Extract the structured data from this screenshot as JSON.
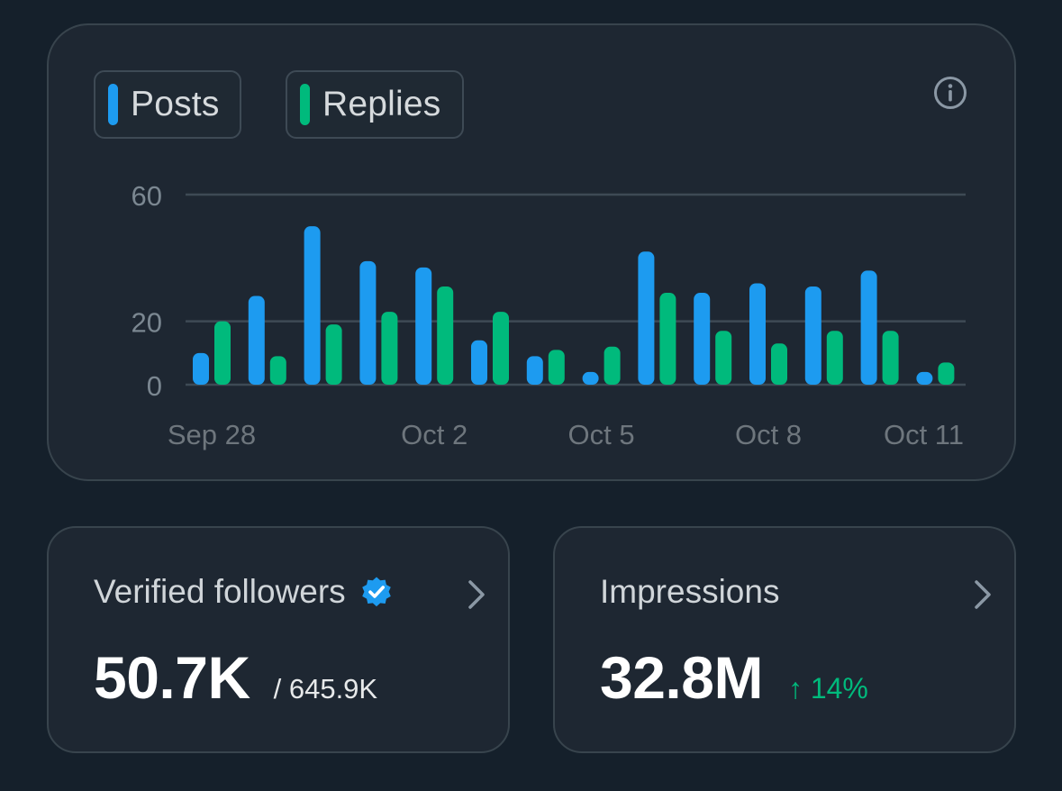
{
  "legend": {
    "posts_label": "Posts",
    "replies_label": "Replies"
  },
  "icons": {
    "info": "info-circle-icon",
    "verified": "verified-badge-icon",
    "chevron": "chevron-right-icon"
  },
  "colors": {
    "posts": "#1d9bf0",
    "replies": "#00ba7c",
    "gridline": "#3e4a55",
    "tick_text": "#7b8791",
    "date_text": "#6e767d"
  },
  "chart_data": {
    "type": "bar",
    "categories": [
      "Sep 28",
      "Sep 29",
      "Sep 30",
      "Oct 1",
      "Oct 2",
      "Oct 3",
      "Oct 4",
      "Oct 5",
      "Oct 6",
      "Oct 7",
      "Oct 8",
      "Oct 9",
      "Oct 10",
      "Oct 11"
    ],
    "x_tick_labels": [
      "Sep 28",
      "Oct 2",
      "Oct 5",
      "Oct 8",
      "Oct 11"
    ],
    "series": [
      {
        "name": "Posts",
        "values": [
          10,
          28,
          50,
          39,
          37,
          14,
          9,
          4,
          42,
          29,
          32,
          31,
          36,
          4
        ]
      },
      {
        "name": "Replies",
        "values": [
          20,
          9,
          19,
          23,
          31,
          23,
          11,
          12,
          29,
          17,
          13,
          17,
          17,
          7
        ]
      }
    ],
    "y_ticks": [
      0,
      20,
      60
    ],
    "ylim": [
      0,
      60
    ],
    "grid": true,
    "legend_position": "top-left"
  },
  "stats": {
    "verified_followers": {
      "title": "Verified followers",
      "value": "50.7K",
      "total": "/ 645.9K"
    },
    "impressions": {
      "title": "Impressions",
      "value": "32.8M",
      "change": "↑ 14%"
    }
  }
}
